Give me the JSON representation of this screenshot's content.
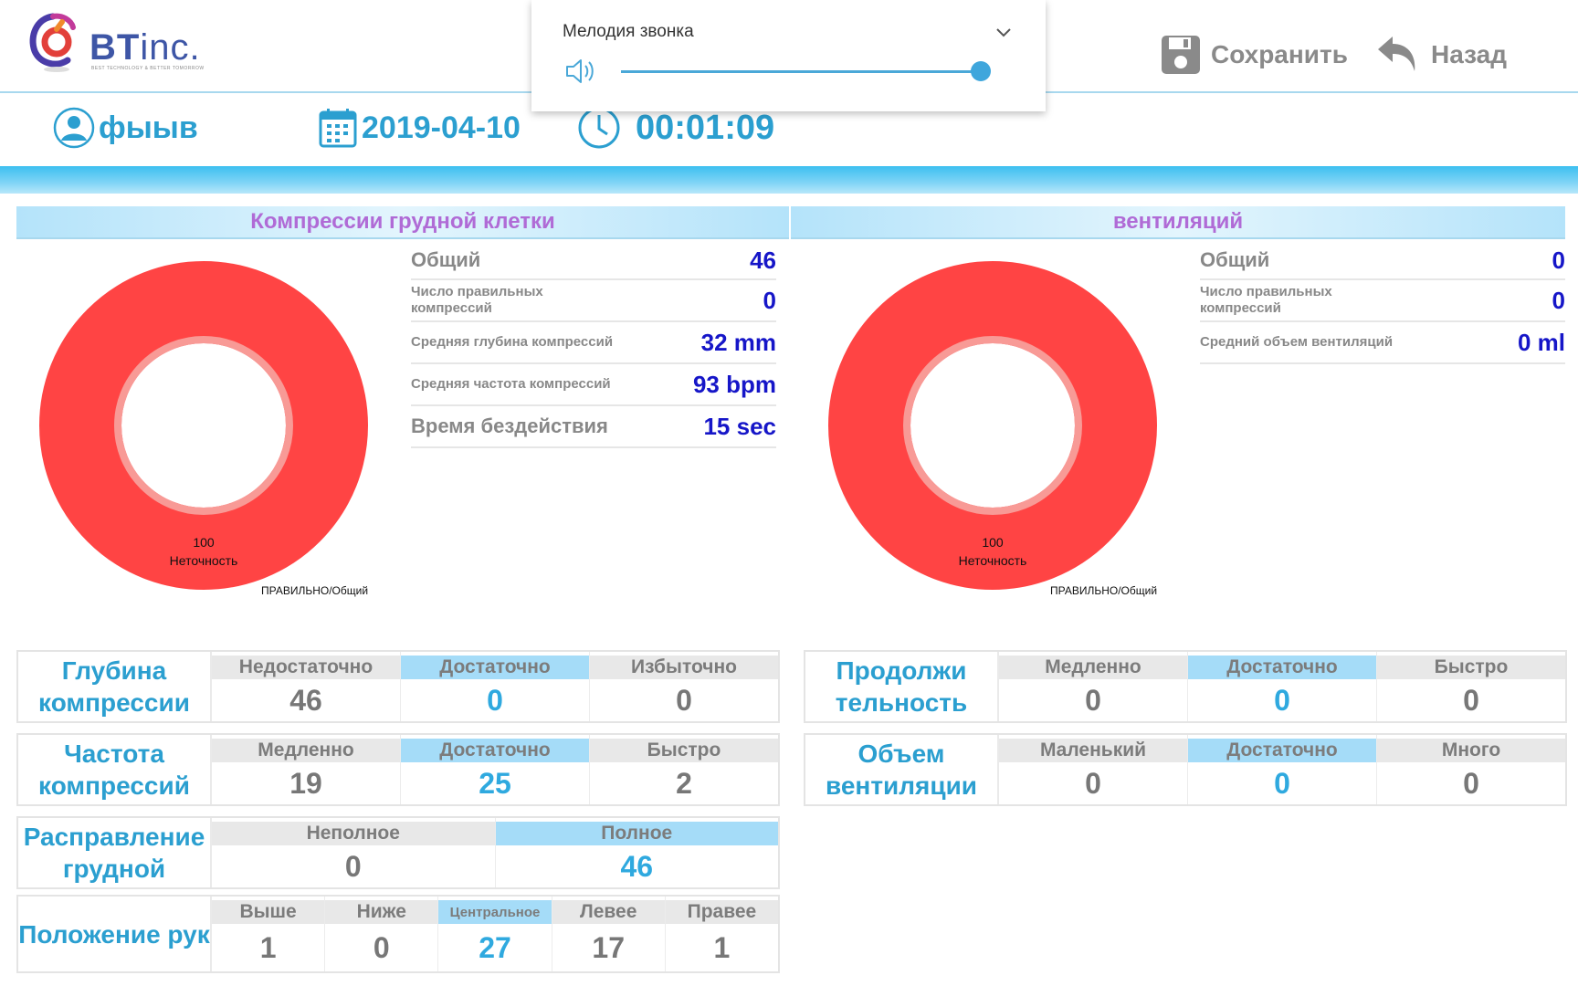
{
  "header": {
    "logo_text": "BT",
    "logo_text_suffix": "inc.",
    "logo_tagline": "BEST TECHNOLOGY & BETTER TOMORROW",
    "save_label": "Сохранить",
    "back_label": "Назад"
  },
  "ringtone_popup": {
    "title": "Мелодия звонка",
    "volume_percent": 100
  },
  "info": {
    "user": "фыыв",
    "date": "2019-04-10",
    "time": "00:01:09"
  },
  "compressions": {
    "title": "Компрессии грудной клетки",
    "donut": {
      "value": "100",
      "label": "Неточность",
      "footer": "ПРАВИЛЬНО/Общий",
      "color": "#ff4444"
    },
    "stats": [
      {
        "label": "Общий",
        "value": "46"
      },
      {
        "label": "Число правильных компрессий",
        "value": "0"
      },
      {
        "label": "Средняя глубина компрессий",
        "value": "32 mm"
      },
      {
        "label": "Средняя частота компрессий",
        "value": "93 bpm"
      },
      {
        "label": "Время бездействия",
        "value": "15 sec"
      }
    ]
  },
  "ventilation": {
    "title": "вентиляций",
    "donut": {
      "value": "100",
      "label": "Неточность",
      "footer": "ПРАВИЛЬНО/Общий",
      "color": "#ff4444"
    },
    "stats": [
      {
        "label": "Общий",
        "value": "0"
      },
      {
        "label": "Число правильных компрессий",
        "value": "0"
      },
      {
        "label": "Средний объем вентиляций",
        "value": "0 ml"
      }
    ]
  },
  "grids": {
    "depth": {
      "label": "Глубина компрессии",
      "cells": [
        {
          "head": "Недостаточно",
          "value": "46"
        },
        {
          "head": "Достаточно",
          "value": "0"
        },
        {
          "head": "Избыточно",
          "value": "0"
        }
      ]
    },
    "rate": {
      "label": "Частота компрессий",
      "cells": [
        {
          "head": "Медленно",
          "value": "19"
        },
        {
          "head": "Достаточно",
          "value": "25"
        },
        {
          "head": "Быстро",
          "value": "2"
        }
      ]
    },
    "recoil": {
      "label": "Расправление грудной",
      "cells": [
        {
          "head": "Неполное",
          "value": "0"
        },
        {
          "head": "Полное",
          "value": "46"
        }
      ]
    },
    "hands": {
      "label": "Положение рук",
      "cells": [
        {
          "head": "Выше",
          "value": "1"
        },
        {
          "head": "Ниже",
          "value": "0"
        },
        {
          "head": "Центральное",
          "value": "27"
        },
        {
          "head": "Левее",
          "value": "17"
        },
        {
          "head": "Правее",
          "value": "1"
        }
      ]
    },
    "duration": {
      "label": "Продолжи тельность",
      "cells": [
        {
          "head": "Медленно",
          "value": "0"
        },
        {
          "head": "Достаточно",
          "value": "0"
        },
        {
          "head": "Быстро",
          "value": "0"
        }
      ]
    },
    "volume": {
      "label": "Объем вентиляции",
      "cells": [
        {
          "head": "Маленький",
          "value": "0"
        },
        {
          "head": "Достаточно",
          "value": "0"
        },
        {
          "head": "Много",
          "value": "0"
        }
      ]
    }
  }
}
